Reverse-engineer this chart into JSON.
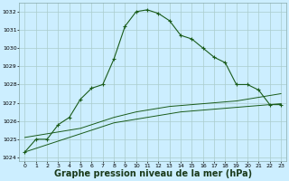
{
  "background_color": "#cceeff",
  "grid_color": "#aacccc",
  "line_color": "#1a5c1a",
  "xlabel": "Graphe pression niveau de la mer (hPa)",
  "xlabel_fontsize": 7,
  "xlim": [
    -0.5,
    23.5
  ],
  "ylim": [
    1023.8,
    1032.5
  ],
  "yticks": [
    1024,
    1025,
    1026,
    1027,
    1028,
    1029,
    1030,
    1031,
    1032
  ],
  "xticks": [
    0,
    1,
    2,
    3,
    4,
    5,
    6,
    7,
    8,
    9,
    10,
    11,
    12,
    13,
    14,
    15,
    16,
    17,
    18,
    19,
    20,
    21,
    22,
    23
  ],
  "series1_x": [
    0,
    1,
    2,
    3,
    4,
    5,
    6,
    7,
    8,
    9,
    10,
    11,
    12,
    13,
    14,
    15,
    16,
    17,
    18,
    19,
    20,
    21,
    22,
    23
  ],
  "series1_y": [
    1024.3,
    1025.0,
    1025.0,
    1025.8,
    1026.2,
    1027.2,
    1027.8,
    1028.0,
    1029.4,
    1031.2,
    1032.0,
    1032.1,
    1031.9,
    1031.5,
    1030.7,
    1030.5,
    1030.0,
    1029.5,
    1029.2,
    1028.0,
    1028.0,
    1027.7,
    1026.9,
    1026.9
  ],
  "series2_x": [
    0,
    1,
    2,
    3,
    4,
    5,
    6,
    7,
    8,
    9,
    10,
    11,
    12,
    13,
    14,
    15,
    16,
    17,
    18,
    19,
    20,
    21,
    22,
    23
  ],
  "series2_y": [
    1025.1,
    1025.2,
    1025.3,
    1025.4,
    1025.5,
    1025.6,
    1025.8,
    1026.0,
    1026.2,
    1026.35,
    1026.5,
    1026.6,
    1026.7,
    1026.8,
    1026.85,
    1026.9,
    1026.95,
    1027.0,
    1027.05,
    1027.1,
    1027.2,
    1027.3,
    1027.4,
    1027.5
  ],
  "series3_x": [
    0,
    1,
    2,
    3,
    4,
    5,
    6,
    7,
    8,
    9,
    10,
    11,
    12,
    13,
    14,
    15,
    16,
    17,
    18,
    19,
    20,
    21,
    22,
    23
  ],
  "series3_y": [
    1024.3,
    1024.5,
    1024.7,
    1024.9,
    1025.1,
    1025.3,
    1025.5,
    1025.7,
    1025.9,
    1026.0,
    1026.1,
    1026.2,
    1026.3,
    1026.4,
    1026.5,
    1026.55,
    1026.6,
    1026.65,
    1026.7,
    1026.75,
    1026.8,
    1026.85,
    1026.9,
    1026.95
  ]
}
